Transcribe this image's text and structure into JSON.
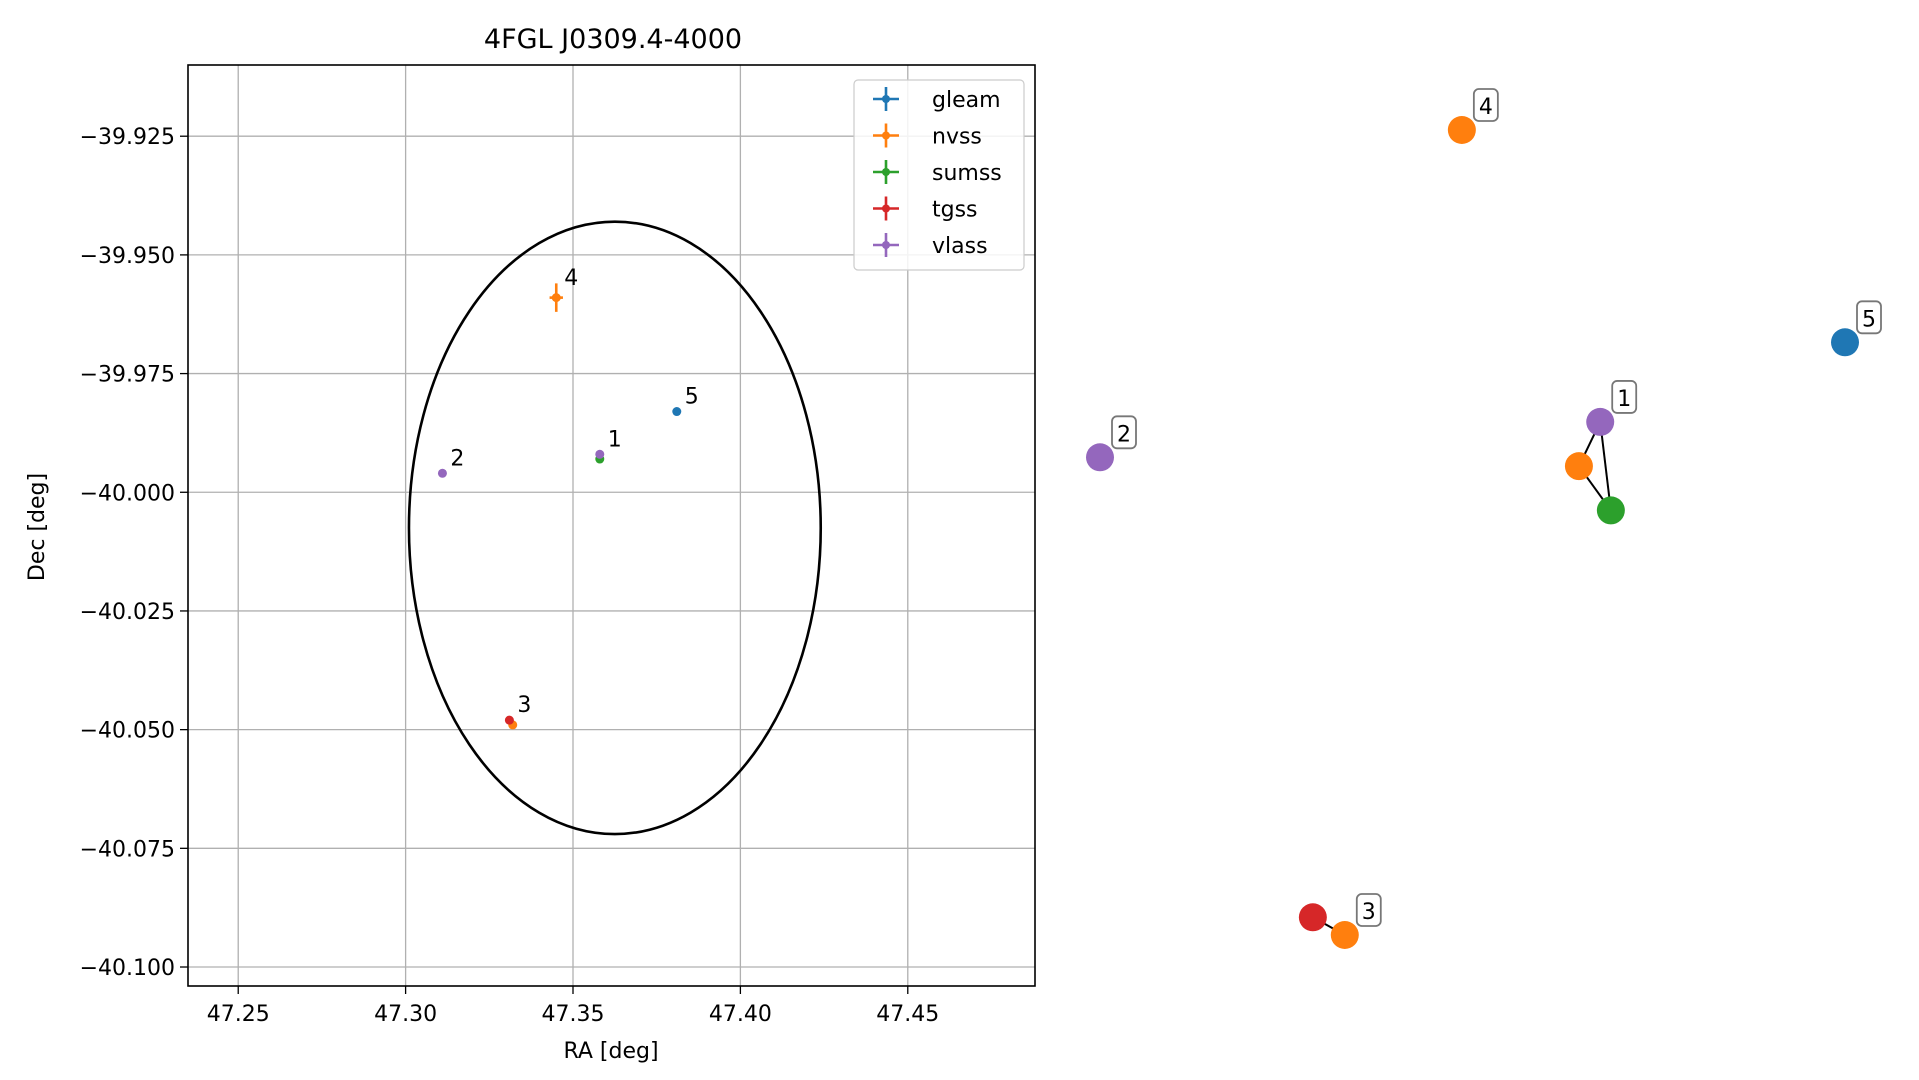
{
  "chart_data": [
    {
      "type": "scatter",
      "title": "4FGL J0309.4-4000",
      "xlabel": "RA [deg]",
      "ylabel": "Dec [deg]",
      "xlim": [
        47.235,
        47.488
      ],
      "ylim": [
        -40.104,
        -39.91
      ],
      "x_ticks": [
        47.25,
        47.3,
        47.35,
        47.4,
        47.45
      ],
      "x_tick_labels": [
        "47.25",
        "47.30",
        "47.35",
        "47.40",
        "47.45"
      ],
      "y_ticks": [
        -39.925,
        -39.95,
        -39.975,
        -40.0,
        -40.025,
        -40.05,
        -40.075,
        -40.1
      ],
      "y_tick_labels": [
        "−39.925",
        "−39.950",
        "−39.975",
        "−40.000",
        "−40.025",
        "−40.050",
        "−40.075",
        "−40.100"
      ],
      "grid": true,
      "legend_position": "top-right",
      "series": [
        {
          "name": "gleam",
          "color": "#1f77b4",
          "points": [
            {
              "x": 47.381,
              "y": -39.983
            }
          ]
        },
        {
          "name": "nvss",
          "color": "#ff7f0e",
          "points": [
            {
              "x": 47.345,
              "y": -39.959,
              "xerr": 0.002,
              "yerr": 0.003
            },
            {
              "x": 47.332,
              "y": -40.049
            }
          ]
        },
        {
          "name": "sumss",
          "color": "#2ca02c",
          "points": [
            {
              "x": 47.358,
              "y": -39.993
            }
          ]
        },
        {
          "name": "tgss",
          "color": "#d62728",
          "points": [
            {
              "x": 47.331,
              "y": -40.048
            }
          ]
        },
        {
          "name": "vlass",
          "color": "#9467bd",
          "points": [
            {
              "x": 47.358,
              "y": -39.992
            },
            {
              "x": 47.311,
              "y": -39.996
            }
          ]
        }
      ],
      "ellipse": {
        "center_x": 47.3625,
        "center_y": -40.0075,
        "half_width": 0.0615,
        "half_height": 0.0645,
        "color": "#000000"
      },
      "annotations": [
        {
          "text": "1",
          "x": 47.358,
          "y": -39.992
        },
        {
          "text": "2",
          "x": 47.311,
          "y": -39.996
        },
        {
          "text": "3",
          "x": 47.331,
          "y": -40.048
        },
        {
          "text": "4",
          "x": 47.345,
          "y": -39.958
        },
        {
          "text": "5",
          "x": 47.381,
          "y": -39.983
        }
      ]
    },
    {
      "type": "network",
      "nodes": [
        {
          "id": "n2",
          "color": "#9467bd",
          "x": 47.311,
          "y": -39.996
        },
        {
          "id": "n4",
          "color": "#ff7f0e",
          "x": 47.345,
          "y": -39.959
        },
        {
          "id": "n1v",
          "color": "#9467bd",
          "x": 47.358,
          "y": -39.992
        },
        {
          "id": "n1n",
          "color": "#ff7f0e",
          "x": 47.356,
          "y": -39.997
        },
        {
          "id": "n1s",
          "color": "#2ca02c",
          "x": 47.359,
          "y": -40.002
        },
        {
          "id": "n5",
          "color": "#1f77b4",
          "x": 47.381,
          "y": -39.983
        },
        {
          "id": "n3t",
          "color": "#d62728",
          "x": 47.331,
          "y": -40.048
        },
        {
          "id": "n3n",
          "color": "#ff7f0e",
          "x": 47.334,
          "y": -40.05
        }
      ],
      "edges": [
        [
          "n1n",
          "n1v"
        ],
        [
          "n1n",
          "n1s"
        ],
        [
          "n1v",
          "n1s"
        ],
        [
          "n3t",
          "n3n"
        ]
      ],
      "labels": [
        {
          "text": "1",
          "node": "n1v"
        },
        {
          "text": "2",
          "node": "n2"
        },
        {
          "text": "3",
          "node": "n3n"
        },
        {
          "text": "4",
          "node": "n4"
        },
        {
          "text": "5",
          "node": "n5"
        }
      ]
    }
  ]
}
